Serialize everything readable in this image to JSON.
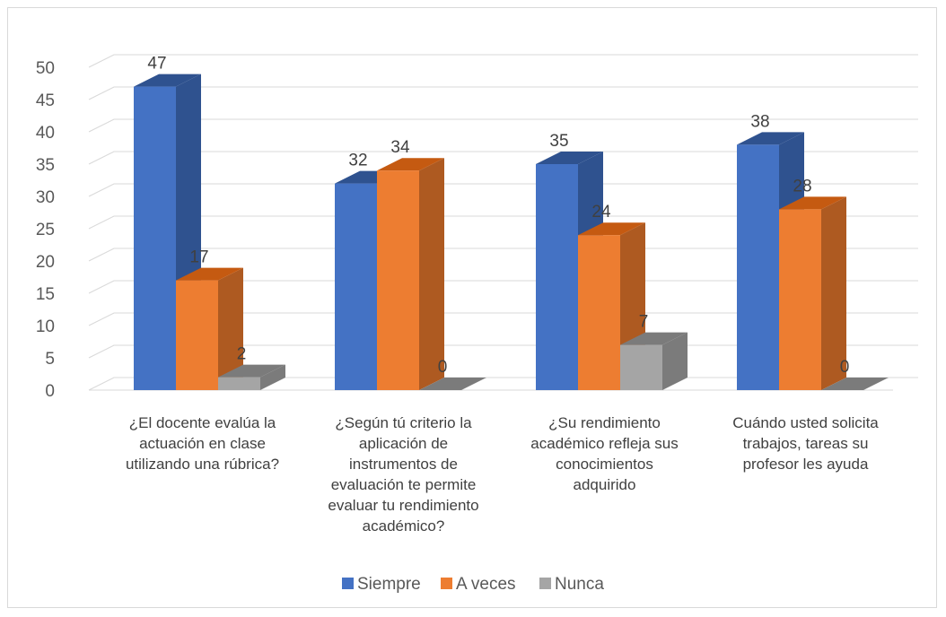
{
  "chart_data": {
    "type": "bar",
    "title": "",
    "xlabel": "",
    "ylabel": "",
    "ylim": [
      0,
      50
    ],
    "ytick_step": 5,
    "grid": true,
    "legend_position": "bottom",
    "categories": [
      "¿El docente evalúa la actuación en clase utilizando una rúbrica?",
      "¿Según tú criterio la aplicación de instrumentos de evaluación te permite evaluar tu rendimiento académico?",
      "¿Su rendimiento académico refleja sus conocimientos adquirido",
      "Cuándo usted solicita trabajos, tareas su profesor les ayuda"
    ],
    "category_lines": [
      [
        "¿El docente evalúa la",
        "actuación en clase",
        "utilizando una rúbrica?"
      ],
      [
        "¿Según tú criterio la",
        "aplicación de",
        "instrumentos de",
        "evaluación te permite",
        "evaluar tu rendimiento",
        "académico?"
      ],
      [
        "¿Su rendimiento",
        "académico refleja sus",
        "conocimientos",
        "adquirido"
      ],
      [
        "Cuándo usted solicita",
        "trabajos, tareas su",
        "profesor les ayuda"
      ]
    ],
    "series": [
      {
        "name": "Siempre",
        "color": "#4472c4",
        "side": "#2f528f",
        "top": "#2f528f",
        "values": [
          47,
          32,
          35,
          38
        ]
      },
      {
        "name": "A veces",
        "color": "#ed7d31",
        "side": "#ae5a21",
        "top": "#c55a11",
        "values": [
          17,
          34,
          24,
          28
        ]
      },
      {
        "name": "Nunca",
        "color": "#a5a5a5",
        "side": "#7b7b7b",
        "top": "#7b7b7b",
        "values": [
          2,
          0,
          7,
          0
        ]
      }
    ]
  }
}
